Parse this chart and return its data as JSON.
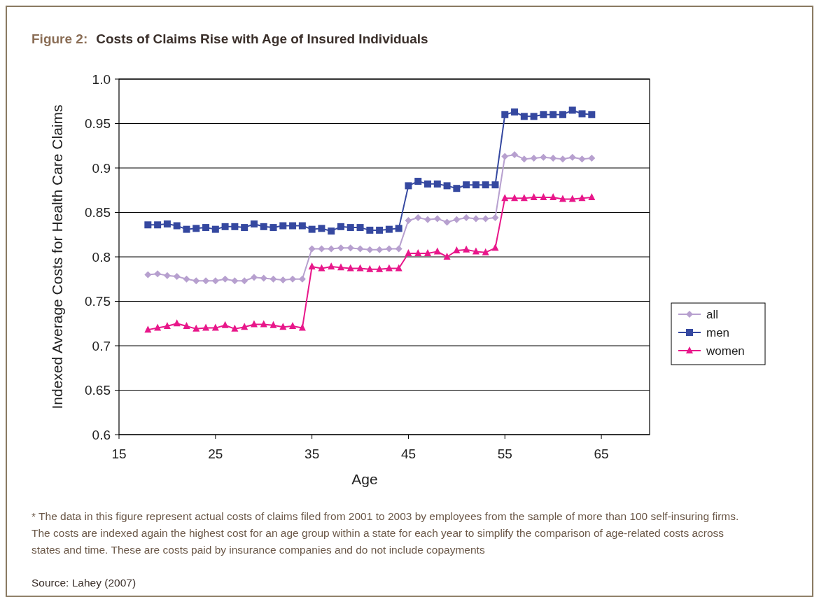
{
  "chart_data": {
    "type": "line",
    "title": "Figure 2: Costs of Claims Rise with Age of Insured Individuals",
    "xlabel": "Age",
    "ylabel": "Indexed Average Costs for Health Care Claims",
    "x": [
      18,
      19,
      20,
      21,
      22,
      23,
      24,
      25,
      26,
      27,
      28,
      29,
      30,
      31,
      32,
      33,
      34,
      35,
      36,
      37,
      38,
      39,
      40,
      41,
      42,
      43,
      44,
      45,
      46,
      47,
      48,
      49,
      50,
      51,
      52,
      53,
      54,
      55,
      56,
      57,
      58,
      59,
      60,
      61,
      62,
      63,
      64
    ],
    "series": [
      {
        "name": "all",
        "color": "#b7a0cf",
        "marker": "diamond",
        "values": [
          0.78,
          0.781,
          0.779,
          0.778,
          0.775,
          0.773,
          0.773,
          0.773,
          0.775,
          0.773,
          0.773,
          0.777,
          0.776,
          0.775,
          0.774,
          0.775,
          0.775,
          0.809,
          0.809,
          0.809,
          0.81,
          0.81,
          0.809,
          0.808,
          0.808,
          0.809,
          0.809,
          0.841,
          0.844,
          0.842,
          0.843,
          0.839,
          0.842,
          0.844,
          0.843,
          0.843,
          0.844,
          0.913,
          0.915,
          0.91,
          0.911,
          0.912,
          0.911,
          0.91,
          0.912,
          0.91,
          0.911
        ]
      },
      {
        "name": "men",
        "color": "#3548a0",
        "marker": "square",
        "values": [
          0.836,
          0.836,
          0.837,
          0.835,
          0.831,
          0.832,
          0.833,
          0.831,
          0.834,
          0.834,
          0.833,
          0.837,
          0.834,
          0.833,
          0.835,
          0.835,
          0.835,
          0.831,
          0.832,
          0.829,
          0.834,
          0.833,
          0.833,
          0.83,
          0.83,
          0.831,
          0.832,
          0.88,
          0.885,
          0.882,
          0.882,
          0.88,
          0.877,
          0.881,
          0.881,
          0.881,
          0.881,
          0.96,
          0.963,
          0.958,
          0.958,
          0.96,
          0.96,
          0.96,
          0.965,
          0.961,
          0.96
        ]
      },
      {
        "name": "women",
        "color": "#e8178a",
        "marker": "triangle",
        "values": [
          0.718,
          0.72,
          0.722,
          0.725,
          0.722,
          0.719,
          0.72,
          0.72,
          0.723,
          0.719,
          0.721,
          0.724,
          0.724,
          0.723,
          0.721,
          0.722,
          0.72,
          0.789,
          0.787,
          0.789,
          0.788,
          0.787,
          0.787,
          0.786,
          0.786,
          0.787,
          0.787,
          0.804,
          0.804,
          0.804,
          0.806,
          0.8,
          0.807,
          0.808,
          0.806,
          0.805,
          0.81,
          0.866,
          0.866,
          0.866,
          0.867,
          0.867,
          0.867,
          0.865,
          0.865,
          0.866,
          0.867
        ]
      }
    ],
    "xlim": [
      15,
      70
    ],
    "xticks": [
      15,
      25,
      35,
      45,
      55,
      65
    ],
    "ylim": [
      0.6,
      1.0
    ],
    "yticks": [
      0.6,
      0.65,
      0.7,
      0.75,
      0.8,
      0.85,
      0.9,
      0.95,
      {
        "value": 1.0,
        "label": "1.0"
      }
    ],
    "grid": "y",
    "legend": "right",
    "line_style": "solid",
    "annotations": [
      "* The data in this figure represent actual costs of claims filed from 2001 to 2003 by employees from the sample of more than 100 self-insuring firms.  The costs are indexed again the highest cost for an age group within a state for each year to simplify the comparison of age-related costs across states and time.  These are costs paid by insurance companies and do not include copayments",
      "Source: Lahey (2007)"
    ]
  }
}
